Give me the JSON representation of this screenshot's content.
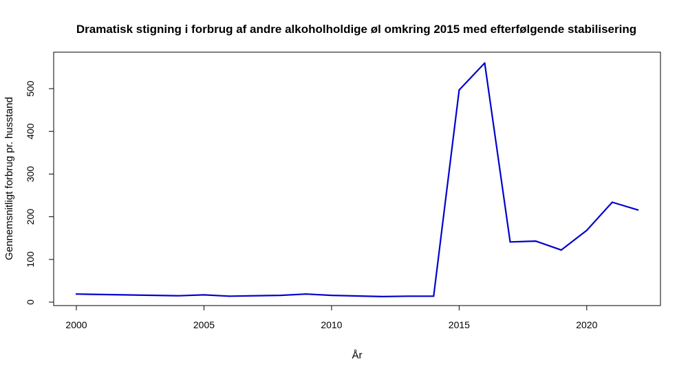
{
  "chart_data": {
    "type": "line",
    "title": "Dramatisk stigning i forbrug af andre alkoholholdige øl omkring 2015 med efterfølgende stabilisering",
    "xlabel": "År",
    "ylabel": "Gennemsnitligt forbrug pr. husstand",
    "xlim": [
      2000,
      2022
    ],
    "ylim": [
      0,
      560
    ],
    "x_ticks": [
      2000,
      2005,
      2010,
      2015,
      2020
    ],
    "y_ticks": [
      0,
      100,
      200,
      300,
      400,
      500
    ],
    "grid": false,
    "legend": "none",
    "series": [
      {
        "color": "#0000CD",
        "x": [
          2000,
          2004,
          2005,
          2006,
          2008,
          2009,
          2010,
          2012,
          2013,
          2014,
          2015,
          2016,
          2017,
          2018,
          2019,
          2020,
          2021,
          2022
        ],
        "y": [
          19,
          15,
          17,
          14,
          16,
          19,
          16,
          13,
          14,
          14,
          497,
          560,
          141,
          143,
          122,
          168,
          234,
          216
        ]
      }
    ]
  }
}
